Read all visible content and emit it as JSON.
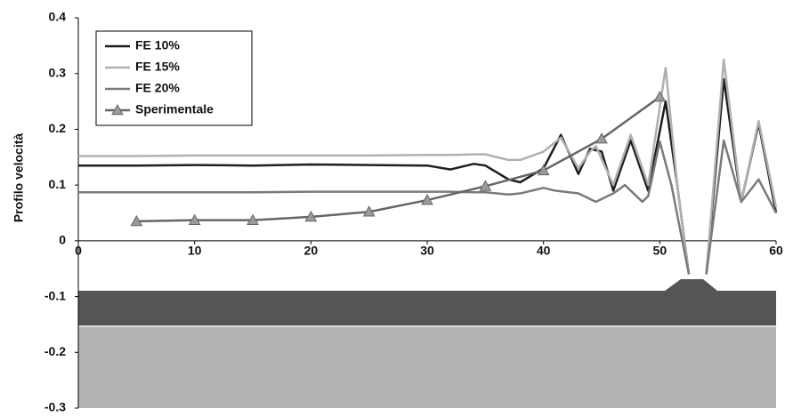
{
  "chart_data": {
    "type": "line",
    "y_label": "Profilo velocità",
    "xlim": [
      0,
      60
    ],
    "xticks": [
      0,
      10,
      20,
      30,
      40,
      50,
      60
    ],
    "ylim": [
      -0.3,
      0.4
    ],
    "yticks": [
      0.4,
      0.3,
      0.2,
      0.1,
      0,
      -0.1,
      -0.2,
      -0.3
    ],
    "legend": "upper left",
    "series": [
      {
        "name": "FE 10%",
        "color": "#1e1e1e",
        "x": [
          0,
          5,
          10,
          15,
          20,
          25,
          30,
          32,
          34,
          35,
          37,
          38,
          40,
          41.5,
          43,
          44,
          45,
          46,
          47.5,
          49,
          50.5,
          51.5,
          52.5,
          53,
          54,
          55.5,
          57,
          58.5,
          60
        ],
        "values": [
          0.135,
          0.135,
          0.136,
          0.135,
          0.137,
          0.136,
          0.135,
          0.128,
          0.138,
          0.135,
          0.11,
          0.105,
          0.13,
          0.19,
          0.12,
          0.165,
          0.16,
          0.09,
          0.18,
          0.09,
          0.25,
          0.1,
          -0.06,
          null,
          -0.06,
          0.29,
          0.07,
          0.21,
          0.05
        ]
      },
      {
        "name": "FE 15%",
        "color": "#b0b0b0",
        "x": [
          0,
          5,
          10,
          15,
          20,
          25,
          30,
          32,
          34,
          35,
          37,
          38,
          40,
          41.5,
          43,
          44,
          44.5,
          46,
          47.5,
          49,
          50.5,
          51.5,
          52.5,
          53,
          54,
          55.5,
          57,
          58.5,
          60
        ],
        "values": [
          0.152,
          0.152,
          0.153,
          0.153,
          0.153,
          0.153,
          0.154,
          0.154,
          0.155,
          0.155,
          0.145,
          0.145,
          0.16,
          0.185,
          0.13,
          0.16,
          0.17,
          0.1,
          0.19,
          0.1,
          0.31,
          0.1,
          -0.06,
          null,
          -0.06,
          0.325,
          0.07,
          0.215,
          0.06
        ]
      },
      {
        "name": "FE 20%",
        "color": "#7a7a7a",
        "x": [
          0,
          5,
          10,
          15,
          20,
          25,
          30,
          32,
          34,
          35,
          37,
          38,
          40,
          41,
          43,
          44.5,
          46,
          47,
          48.5,
          49,
          50,
          51,
          52.5,
          53,
          54,
          55.5,
          57,
          58.5,
          60
        ],
        "values": [
          0.087,
          0.087,
          0.087,
          0.087,
          0.088,
          0.088,
          0.088,
          0.088,
          0.087,
          0.087,
          0.083,
          0.085,
          0.095,
          0.09,
          0.085,
          0.07,
          0.085,
          0.1,
          0.07,
          0.08,
          0.178,
          0.1,
          -0.06,
          null,
          -0.06,
          0.18,
          0.07,
          0.11,
          0.05
        ]
      },
      {
        "name": "Sperimentale",
        "color": "#666666",
        "marker": "triangle",
        "marker_color": "#9a9a9a",
        "x": [
          5,
          10,
          15,
          20,
          25,
          30,
          35,
          40,
          45,
          50
        ],
        "values": [
          0.035,
          0.037,
          0.037,
          0.043,
          0.052,
          0.073,
          0.098,
          0.126,
          0.183,
          0.258
        ]
      }
    ]
  }
}
